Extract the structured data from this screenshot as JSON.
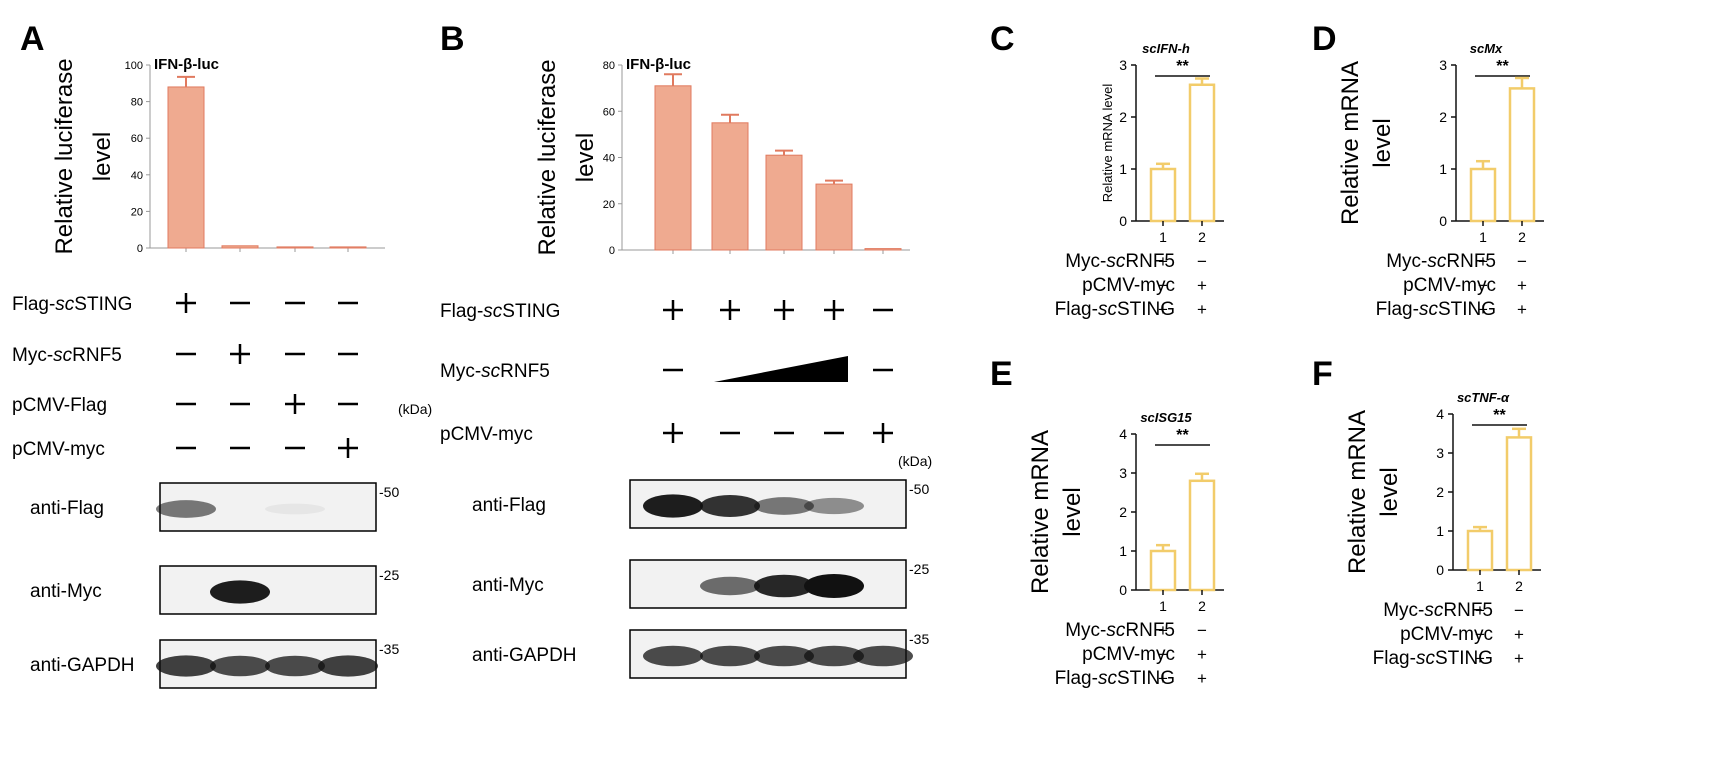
{
  "chart_data": [
    {
      "panel": "A",
      "type": "bar",
      "title": "IFN-β-luc",
      "ylabel_lines": [
        "Relative luciferase",
        "level"
      ],
      "ylim": [
        0,
        100
      ],
      "yticks": [
        "0",
        "20",
        "40",
        "60",
        "80",
        "100"
      ],
      "values": [
        88,
        1.2,
        0.6,
        0.6
      ],
      "errors": [
        5.5,
        0,
        0,
        0
      ],
      "bar_color": "#efaa90",
      "bar_edge": "#e07a5f",
      "conditions": [
        {
          "label_parts": [
            "Flag-",
            "sc",
            "STING"
          ],
          "signs": [
            "+",
            "−",
            "−",
            "−"
          ]
        },
        {
          "label_parts": [
            "Myc-",
            "sc",
            "RNF5"
          ],
          "signs": [
            "−",
            "+",
            "−",
            "−"
          ]
        },
        {
          "label_parts": [
            "pCMV-Flag"
          ],
          "signs": [
            "−",
            "−",
            "+",
            "−"
          ]
        },
        {
          "label_parts": [
            "pCMV-myc"
          ],
          "signs": [
            "−",
            "−",
            "−",
            "+"
          ]
        }
      ],
      "kda_label": "(kDa)",
      "blots": [
        {
          "label": "anti-Flag",
          "marker": "-50",
          "intensity": [
            0.55,
            0,
            0.05,
            0
          ]
        },
        {
          "label": "anti-Myc",
          "marker": "-25",
          "intensity": [
            0,
            0.95,
            0,
            0
          ]
        },
        {
          "label": "anti-GAPDH",
          "marker": "-35",
          "intensity": [
            0.8,
            0.75,
            0.75,
            0.8
          ]
        }
      ]
    },
    {
      "panel": "B",
      "type": "bar",
      "title": "IFN-β-luc",
      "ylabel_lines": [
        "Relative luciferase",
        "level"
      ],
      "ylim": [
        0,
        80
      ],
      "yticks": [
        "0",
        "20",
        "40",
        "60",
        "80"
      ],
      "values": [
        71,
        55,
        41,
        28.5,
        0.6
      ],
      "errors": [
        5,
        3.5,
        2,
        1.5,
        0
      ],
      "bar_color": "#efaa90",
      "bar_edge": "#e07a5f",
      "conditions": [
        {
          "label_parts": [
            "Flag-",
            "sc",
            "STING"
          ],
          "signs": [
            "+",
            "+",
            "+",
            "+",
            "−"
          ]
        },
        {
          "label_parts": [
            "Myc-",
            "sc",
            "RNF5"
          ],
          "signs": [
            "−",
            "ramp",
            "ramp",
            "ramp",
            "−"
          ]
        },
        {
          "label_parts": [
            "pCMV-myc"
          ],
          "signs": [
            "+",
            "−",
            "−",
            "−",
            "+"
          ]
        }
      ],
      "kda_label": "(kDa)",
      "blots": [
        {
          "label": "anti-Flag",
          "marker": "-50",
          "intensity": [
            0.95,
            0.85,
            0.55,
            0.45,
            0
          ]
        },
        {
          "label": "anti-Myc",
          "marker": "-25",
          "intensity": [
            0,
            0.6,
            0.9,
            1.0,
            0
          ]
        },
        {
          "label": "anti-GAPDH",
          "marker": "-35",
          "intensity": [
            0.75,
            0.75,
            0.75,
            0.75,
            0.75
          ]
        }
      ]
    },
    {
      "panel": "C",
      "type": "bar",
      "gene": "scIFN-h",
      "ylabel_lines": [
        "Relative  mRNA level"
      ],
      "ylabel_small": true,
      "ylim": [
        0,
        3
      ],
      "yticks": [
        "0",
        "1",
        "2",
        "3"
      ],
      "categories": [
        "1",
        "2"
      ],
      "values": [
        1.0,
        2.62
      ],
      "errors": [
        0.1,
        0.12
      ],
      "significance": "**",
      "bar_color": "#ffffff",
      "bar_edge": "#f2cc6a",
      "conditions": [
        {
          "label_parts": [
            "Myc-",
            "sc",
            "RNF5"
          ],
          "signs": [
            "+",
            "−"
          ]
        },
        {
          "label_parts": [
            "pCMV-myc"
          ],
          "signs": [
            "−",
            "+"
          ]
        },
        {
          "label_parts": [
            "Flag-",
            "sc",
            "STING"
          ],
          "signs": [
            "+",
            "+"
          ]
        }
      ]
    },
    {
      "panel": "D",
      "type": "bar",
      "gene": "scMx",
      "ylabel_lines": [
        "Relative mRNA",
        "level"
      ],
      "ylim": [
        0,
        3
      ],
      "yticks": [
        "0",
        "1",
        "2",
        "3"
      ],
      "categories": [
        "1",
        "2"
      ],
      "values": [
        1.0,
        2.55
      ],
      "errors": [
        0.15,
        0.2
      ],
      "significance": "**",
      "bar_color": "#ffffff",
      "bar_edge": "#f2cc6a",
      "conditions": [
        {
          "label_parts": [
            "Myc-",
            "sc",
            "RNF5"
          ],
          "signs": [
            "+",
            "−"
          ]
        },
        {
          "label_parts": [
            "pCMV-myc"
          ],
          "signs": [
            "−",
            "+"
          ]
        },
        {
          "label_parts": [
            "Flag-",
            "sc",
            "STING"
          ],
          "signs": [
            "+",
            "+"
          ]
        }
      ]
    },
    {
      "panel": "E",
      "type": "bar",
      "gene": "scISG15",
      "ylabel_lines": [
        "Relative mRNA",
        "level"
      ],
      "ylim": [
        0,
        4
      ],
      "yticks": [
        "0",
        "1",
        "2",
        "3",
        "4"
      ],
      "categories": [
        "1",
        "2"
      ],
      "values": [
        1.0,
        2.8
      ],
      "errors": [
        0.15,
        0.18
      ],
      "significance": "**",
      "bar_color": "#ffffff",
      "bar_edge": "#f2cc6a",
      "conditions": [
        {
          "label_parts": [
            "Myc-",
            "sc",
            "RNF5"
          ],
          "signs": [
            "+",
            "−"
          ]
        },
        {
          "label_parts": [
            "pCMV-myc"
          ],
          "signs": [
            "−",
            "+"
          ]
        },
        {
          "label_parts": [
            "Flag-",
            "sc",
            "STING"
          ],
          "signs": [
            "+",
            "+"
          ]
        }
      ]
    },
    {
      "panel": "F",
      "type": "bar",
      "gene": "scTNF-α",
      "ylabel_lines": [
        "Relative mRNA",
        "level"
      ],
      "ylim": [
        0,
        4
      ],
      "yticks": [
        "0",
        "1",
        "2",
        "3",
        "4"
      ],
      "categories": [
        "1",
        "2"
      ],
      "values": [
        1.0,
        3.4
      ],
      "errors": [
        0.1,
        0.22
      ],
      "significance": "**",
      "bar_color": "#ffffff",
      "bar_edge": "#f2cc6a",
      "conditions": [
        {
          "label_parts": [
            "Myc-",
            "sc",
            "RNF5"
          ],
          "signs": [
            "+",
            "−"
          ]
        },
        {
          "label_parts": [
            "pCMV-myc"
          ],
          "signs": [
            "−",
            "+"
          ]
        },
        {
          "label_parts": [
            "Flag-",
            "sc",
            "STING"
          ],
          "signs": [
            "+",
            "+"
          ]
        }
      ]
    }
  ]
}
